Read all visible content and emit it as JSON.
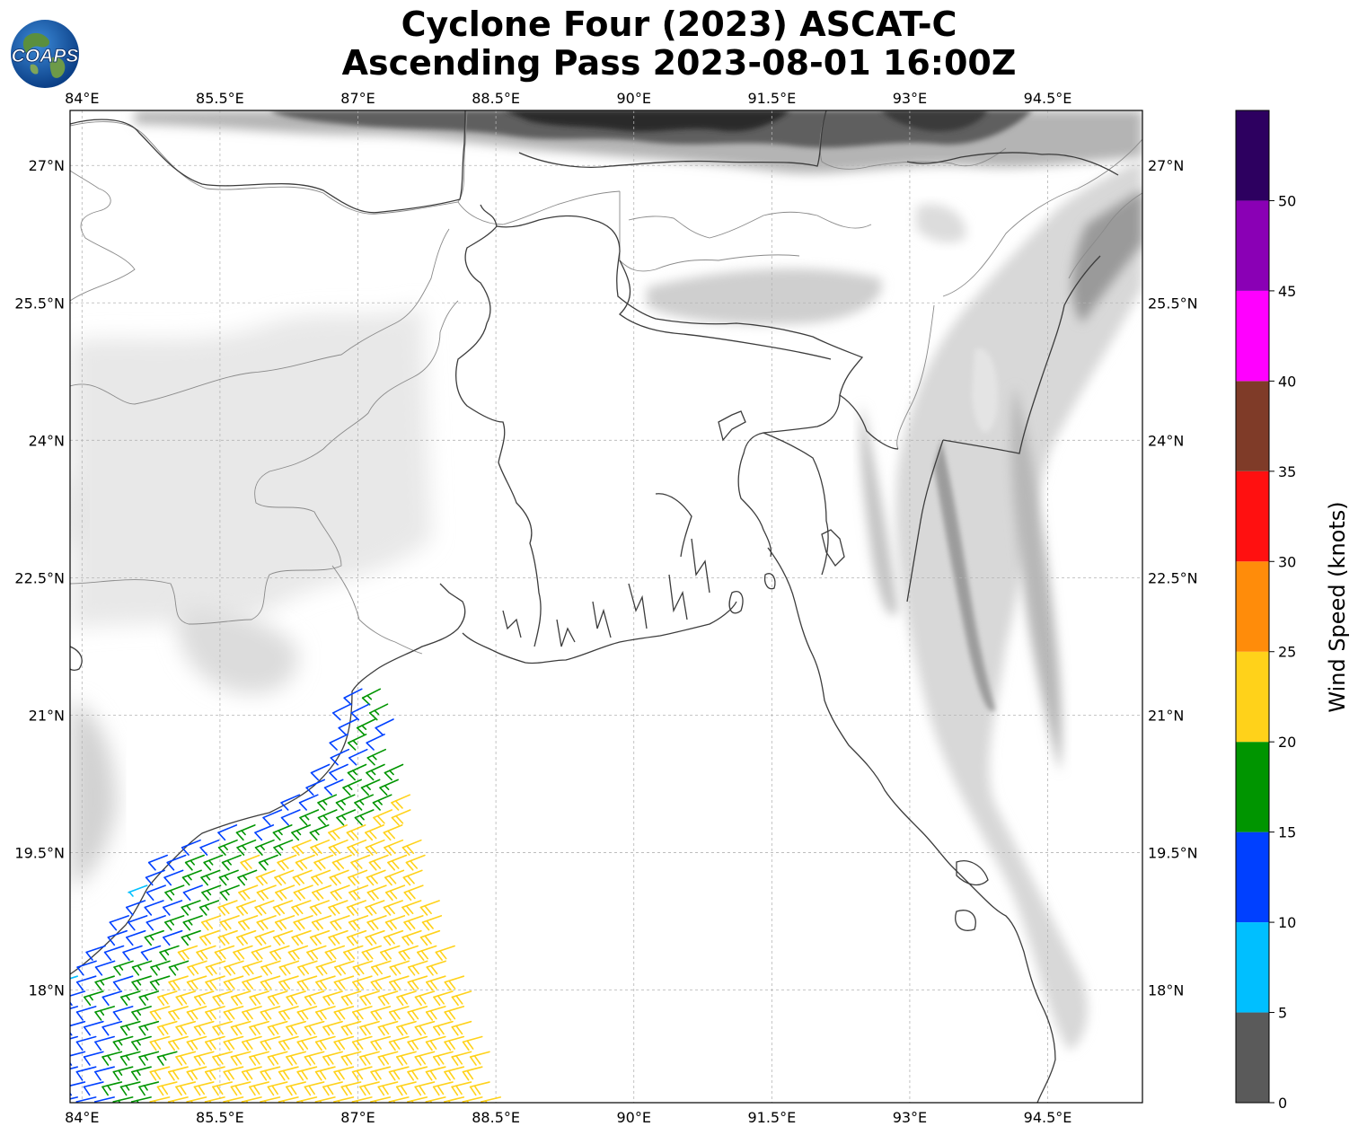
{
  "title_line1": "Cyclone Four (2023) ASCAT-C",
  "title_line2": "Ascending Pass 2023-08-01 16:00Z",
  "logo_text": "COAPS",
  "map": {
    "lon_ticks": [
      "84°E",
      "85.5°E",
      "87°E",
      "88.5°E",
      "90°E",
      "91.5°E",
      "93°E",
      "94.5°E"
    ],
    "lon_values": [
      84,
      85.5,
      87,
      88.5,
      90,
      91.5,
      93,
      94.5
    ],
    "lat_ticks": [
      "27°N",
      "25.5°N",
      "24°N",
      "22.5°N",
      "21°N",
      "19.5°N",
      "18°N"
    ],
    "lat_values": [
      27,
      25.5,
      24,
      22.5,
      21,
      19.5,
      18
    ],
    "lon_range": [
      83.87,
      95.53
    ],
    "lat_range": [
      16.77,
      27.6
    ],
    "gridlines": true
  },
  "colorbar": {
    "label": "Wind Speed (knots)",
    "ticks": [
      "0",
      "5",
      "10",
      "15",
      "20",
      "25",
      "30",
      "35",
      "40",
      "45",
      "50"
    ],
    "bins": [
      {
        "min": 0,
        "max": 5,
        "color": "#5a5a5a"
      },
      {
        "min": 5,
        "max": 10,
        "color": "#00bfff"
      },
      {
        "min": 10,
        "max": 15,
        "color": "#0040ff"
      },
      {
        "min": 15,
        "max": 20,
        "color": "#009500"
      },
      {
        "min": 20,
        "max": 25,
        "color": "#ffd21a"
      },
      {
        "min": 25,
        "max": 30,
        "color": "#ff8c0a"
      },
      {
        "min": 30,
        "max": 35,
        "color": "#ff1010"
      },
      {
        "min": 35,
        "max": 40,
        "color": "#7f3b28"
      },
      {
        "min": 40,
        "max": 45,
        "color": "#ff00ff"
      },
      {
        "min": 45,
        "max": 50,
        "color": "#8a00b5"
      },
      {
        "min": 50,
        "max": 55,
        "color": "#2d0060"
      }
    ]
  },
  "wind_swath": {
    "west_lon": 83.87,
    "east_edge": [
      [
        21.4,
        87.4
      ],
      [
        20.5,
        87.5
      ],
      [
        19.6,
        87.7
      ],
      [
        18.7,
        88.0
      ],
      [
        17.8,
        88.3
      ],
      [
        16.8,
        88.6
      ]
    ],
    "coast": [
      [
        21.6,
        87.0
      ],
      [
        21.2,
        86.85
      ],
      [
        20.7,
        86.8
      ],
      [
        20.2,
        86.4
      ],
      [
        19.9,
        85.9
      ],
      [
        19.7,
        85.3
      ],
      [
        19.55,
        84.9
      ],
      [
        19.1,
        84.6
      ],
      [
        18.6,
        84.3
      ],
      [
        18.2,
        83.87
      ]
    ]
  }
}
